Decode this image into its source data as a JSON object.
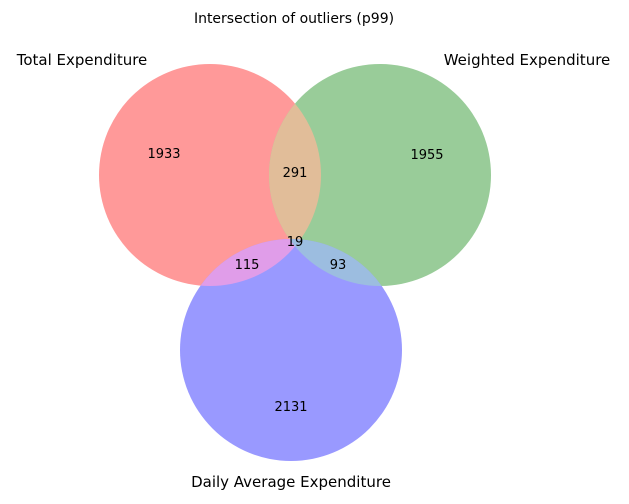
{
  "diagram": {
    "title": "Intersection of outliers (p99)",
    "sets": [
      {
        "key": "A",
        "label": "Total Expenditure",
        "color": "#ff9999"
      },
      {
        "key": "B",
        "label": "Weighted Expenditure",
        "color": "#99cc99"
      },
      {
        "key": "C",
        "label": "Daily Average Expenditure",
        "color": "#9999ff"
      }
    ],
    "regions": {
      "A_only": "1933",
      "B_only": "1955",
      "C_only": "2131",
      "A_B": "291",
      "A_C": "115",
      "B_C": "93",
      "A_B_C": "19"
    },
    "overlap_colors": {
      "A_B": "#e1bd99",
      "A_C": "#e09de9",
      "B_C": "#9cbde0"
    }
  }
}
